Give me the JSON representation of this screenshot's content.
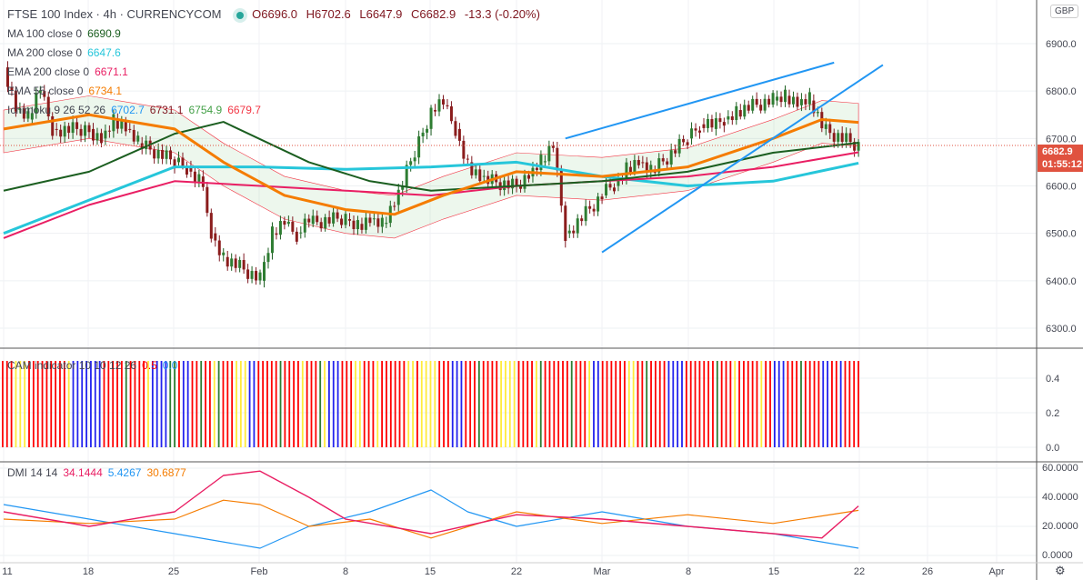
{
  "header": {
    "symbol": "FTSE 100 Index · 4h · CURRENCYCOM",
    "open": "O6696.0",
    "high": "H6702.6",
    "low": "L6647.9",
    "close": "C6682.9",
    "change": "-13.3 (-0.20%)"
  },
  "indicators": [
    {
      "label": "MA 100 close 0",
      "values": [
        "6690.9"
      ],
      "colors": [
        "#1b5e20"
      ]
    },
    {
      "label": "MA 200 close 0",
      "values": [
        "6647.6"
      ],
      "colors": [
        "#26c6da"
      ]
    },
    {
      "label": "EMA 200 close 0",
      "values": [
        "6671.1"
      ],
      "colors": [
        "#e91e63"
      ]
    },
    {
      "label": "EMA 55 close 0",
      "values": [
        "6734.1"
      ],
      "colors": [
        "#f57c00"
      ]
    },
    {
      "label": "Ichimoku 9 26 52 26",
      "values": [
        "6702.7",
        "6731.1",
        "6754.9",
        "6679.7"
      ],
      "colors": [
        "#2196f3",
        "#801922",
        "#43a047",
        "#f23645"
      ]
    }
  ],
  "cam": {
    "label": "CAM indicator 10 10 12 26",
    "values": [
      "0.5",
      "0.0"
    ],
    "colors": [
      "#ff0000",
      "#2196f3"
    ],
    "bars": "RRRYYYRRRRRRRRRYBBBBBBBRRRRRGRRRRYBBBBGGRBBRRGRRYGRRRYYYBBRRRRRGRRRRYRRRGYBBBRRRYYRRRYRRRRRRYYRYYYYRRRBBBRRRGRRRRYYYYRRRRYGRRRRRRGRRRYBBRRRRRRYYRRGRRRRBBBBRRRRRRRGRRRYRRRRRYRRBBBRRRGRRRRBBRRBRRRR"
  },
  "dmi": {
    "label": "DMI 14 14",
    "values": [
      "34.1444",
      "5.4267",
      "30.6877"
    ],
    "colors": [
      "#e91e63",
      "#2196f3",
      "#f57c00"
    ]
  },
  "price_axis": {
    "currency": "GBP",
    "ticks": [
      "6900.0",
      "6800.0",
      "6700.0",
      "6600.0",
      "6500.0",
      "6400.0",
      "6300.0"
    ],
    "last_price": "6682.9",
    "countdown": "01:55:12"
  },
  "cam_axis": {
    "ticks": [
      "0.4",
      "0.2",
      "0.0"
    ]
  },
  "dmi_axis": {
    "ticks": [
      "60.0000",
      "40.0000",
      "20.0000",
      "0.0000"
    ]
  },
  "time_axis": {
    "ticks": [
      "11",
      "18",
      "25",
      "Feb",
      "8",
      "15",
      "22",
      "Mar",
      "8",
      "15",
      "22",
      "26",
      "Apr"
    ]
  },
  "chart_data": {
    "type": "candlestick",
    "price": {
      "dates": [
        "01-11",
        "01-12",
        "01-13",
        "01-14",
        "01-15",
        "01-18",
        "01-19",
        "01-20",
        "01-21",
        "01-22",
        "01-25",
        "01-26",
        "01-27",
        "01-28",
        "01-29",
        "02-01",
        "02-02",
        "02-03",
        "02-04",
        "02-05",
        "02-08",
        "02-09",
        "02-10",
        "02-11",
        "02-12",
        "02-15",
        "02-16",
        "02-17",
        "02-18",
        "02-19",
        "02-22",
        "02-23",
        "02-24",
        "02-25",
        "02-26",
        "03-01",
        "03-02",
        "03-03",
        "03-04",
        "03-05",
        "03-08",
        "03-09",
        "03-10",
        "03-11",
        "03-12",
        "03-15",
        "03-16",
        "03-17",
        "03-18",
        "03-19",
        "03-22"
      ],
      "close": [
        6850,
        6760,
        6740,
        6800,
        6720,
        6720,
        6700,
        6740,
        6720,
        6690,
        6650,
        6640,
        6620,
        6500,
        6450,
        6400,
        6500,
        6520,
        6500,
        6520,
        6530,
        6520,
        6530,
        6520,
        6560,
        6760,
        6770,
        6720,
        6650,
        6620,
        6600,
        6620,
        6650,
        6680,
        6500,
        6580,
        6600,
        6640,
        6650,
        6630,
        6700,
        6730,
        6720,
        6740,
        6760,
        6780,
        6790,
        6770,
        6780,
        6720,
        6683
      ]
    },
    "ma100": {
      "dates": [
        "01-11",
        "01-18",
        "01-25",
        "01-29",
        "02-05",
        "02-10",
        "02-15",
        "02-22",
        "03-01",
        "03-08",
        "03-15",
        "03-22"
      ],
      "values": [
        6590,
        6630,
        6710,
        6735,
        6650,
        6610,
        6590,
        6600,
        6610,
        6630,
        6670,
        6691
      ]
    },
    "ma200": {
      "dates": [
        "01-11",
        "01-18",
        "01-25",
        "02-01",
        "02-08",
        "02-15",
        "02-22",
        "03-01",
        "03-08",
        "03-15",
        "03-22"
      ],
      "values": [
        6500,
        6570,
        6640,
        6640,
        6635,
        6640,
        6650,
        6620,
        6600,
        6610,
        6648
      ]
    },
    "ema200": {
      "dates": [
        "01-11",
        "01-18",
        "01-25",
        "02-01",
        "02-08",
        "02-15",
        "02-22",
        "03-01",
        "03-08",
        "03-15",
        "03-22"
      ],
      "values": [
        6490,
        6560,
        6610,
        6600,
        6590,
        6580,
        6600,
        6610,
        6620,
        6640,
        6671
      ]
    },
    "ema55": {
      "dates": [
        "01-11",
        "01-18",
        "01-25",
        "01-29",
        "02-03",
        "02-08",
        "02-12",
        "02-16",
        "02-22",
        "03-01",
        "03-08",
        "03-15",
        "03-19",
        "03-22"
      ],
      "values": [
        6720,
        6750,
        6720,
        6650,
        6580,
        6550,
        6540,
        6580,
        6630,
        6620,
        6640,
        6700,
        6740,
        6734
      ]
    },
    "trendlines": [
      {
        "from": [
          "02-26",
          6700
        ],
        "to": [
          "03-20",
          6860
        ]
      },
      {
        "from": [
          "03-01",
          6460
        ],
        "to": [
          "03-24",
          6855
        ]
      }
    ],
    "dmi": {
      "adx": {
        "dates": [
          "01-11",
          "01-18",
          "01-25",
          "01-29",
          "02-01",
          "02-05",
          "02-08",
          "02-15",
          "02-22",
          "03-01",
          "03-08",
          "03-15",
          "03-19",
          "03-22"
        ],
        "values": [
          30,
          20,
          30,
          55,
          58,
          40,
          25,
          15,
          28,
          25,
          20,
          15,
          12,
          34
        ]
      },
      "plus": {
        "dates": [
          "01-11",
          "01-18",
          "01-25",
          "02-01",
          "02-05",
          "02-10",
          "02-15",
          "02-18",
          "02-22",
          "03-01",
          "03-08",
          "03-15",
          "03-22"
        ],
        "values": [
          35,
          25,
          15,
          5,
          20,
          30,
          45,
          30,
          20,
          30,
          20,
          15,
          5
        ]
      },
      "minus": {
        "dates": [
          "01-11",
          "01-18",
          "01-25",
          "01-29",
          "02-01",
          "02-05",
          "02-10",
          "02-15",
          "02-22",
          "03-01",
          "03-08",
          "03-15",
          "03-22"
        ],
        "values": [
          25,
          22,
          25,
          38,
          35,
          20,
          25,
          12,
          30,
          22,
          28,
          22,
          31
        ]
      }
    },
    "price_ylim": [
      6250,
      6980
    ],
    "cam_ylim": [
      0,
      0.5
    ],
    "dmi_ylim": [
      0,
      65
    ]
  }
}
